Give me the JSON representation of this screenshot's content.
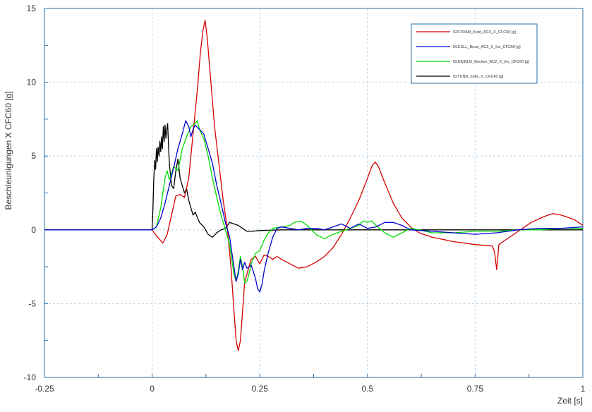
{
  "chart_data": {
    "type": "line",
    "xlabel": "Zeit [s]",
    "ylabel": "Beschleunigungen X CFC60 [g]",
    "xlim": [
      -0.25,
      1.0
    ],
    "ylim": [
      -10,
      15
    ],
    "x_ticks": [
      -0.25,
      0,
      0.25,
      0.5,
      0.75,
      1
    ],
    "x_tick_labels": [
      "-0.25",
      "0",
      "0.25",
      "0.5",
      "0.75",
      "1"
    ],
    "y_ticks": [
      -10,
      -5,
      0,
      5,
      10,
      15
    ],
    "y_tick_labels": [
      "-10",
      "-5",
      "0",
      "5",
      "10",
      "15"
    ],
    "grid": true,
    "legend_position": "top-right",
    "series": [
      {
        "name": "02STRAM_Kopf_ACX_X_CFC60 [g]",
        "color": "#d40000",
        "points": [
          [
            -0.25,
            0
          ],
          [
            -0.1,
            0
          ],
          [
            0.0,
            0
          ],
          [
            0.01,
            -0.4
          ],
          [
            0.025,
            -0.9
          ],
          [
            0.035,
            -0.3
          ],
          [
            0.045,
            1.0
          ],
          [
            0.055,
            2.3
          ],
          [
            0.065,
            2.4
          ],
          [
            0.075,
            2.2
          ],
          [
            0.085,
            3.5
          ],
          [
            0.095,
            6.5
          ],
          [
            0.105,
            9.5
          ],
          [
            0.112,
            12.0
          ],
          [
            0.118,
            13.5
          ],
          [
            0.123,
            14.2
          ],
          [
            0.128,
            13.0
          ],
          [
            0.135,
            10.5
          ],
          [
            0.145,
            7.0
          ],
          [
            0.155,
            4.5
          ],
          [
            0.165,
            2.0
          ],
          [
            0.175,
            0.0
          ],
          [
            0.183,
            -2.5
          ],
          [
            0.19,
            -5.5
          ],
          [
            0.195,
            -7.5
          ],
          [
            0.2,
            -8.2
          ],
          [
            0.205,
            -7.5
          ],
          [
            0.21,
            -5.5
          ],
          [
            0.215,
            -3.5
          ],
          [
            0.22,
            -3.0
          ],
          [
            0.225,
            -2.5
          ],
          [
            0.23,
            -2.0
          ],
          [
            0.24,
            -1.8
          ],
          [
            0.25,
            -2.3
          ],
          [
            0.26,
            -1.7
          ],
          [
            0.27,
            -1.8
          ],
          [
            0.28,
            -2.0
          ],
          [
            0.29,
            -1.8
          ],
          [
            0.3,
            -2.0
          ],
          [
            0.32,
            -2.3
          ],
          [
            0.34,
            -2.6
          ],
          [
            0.36,
            -2.5
          ],
          [
            0.38,
            -2.2
          ],
          [
            0.4,
            -1.8
          ],
          [
            0.42,
            -1.2
          ],
          [
            0.44,
            -0.3
          ],
          [
            0.46,
            0.8
          ],
          [
            0.48,
            2.0
          ],
          [
            0.5,
            3.5
          ],
          [
            0.51,
            4.3
          ],
          [
            0.518,
            4.6
          ],
          [
            0.525,
            4.3
          ],
          [
            0.54,
            3.2
          ],
          [
            0.56,
            1.8
          ],
          [
            0.58,
            0.8
          ],
          [
            0.6,
            0.2
          ],
          [
            0.62,
            -0.2
          ],
          [
            0.65,
            -0.5
          ],
          [
            0.7,
            -0.8
          ],
          [
            0.75,
            -1.0
          ],
          [
            0.79,
            -1.1
          ],
          [
            0.795,
            -1.5
          ],
          [
            0.8,
            -2.7
          ],
          [
            0.805,
            -1.0
          ],
          [
            0.82,
            -0.7
          ],
          [
            0.85,
            -0.1
          ],
          [
            0.88,
            0.5
          ],
          [
            0.91,
            0.9
          ],
          [
            0.93,
            1.1
          ],
          [
            0.95,
            1.0
          ],
          [
            0.98,
            0.7
          ],
          [
            1.0,
            0.3
          ]
        ]
      },
      {
        "name": "D1ESLL_Brust_ACZ_X_Inv_CFC60 [g]",
        "color": "#0000cc",
        "points": [
          [
            -0.25,
            0
          ],
          [
            -0.1,
            0
          ],
          [
            0.0,
            0
          ],
          [
            0.01,
            0.2
          ],
          [
            0.02,
            0.8
          ],
          [
            0.03,
            1.8
          ],
          [
            0.04,
            3.0
          ],
          [
            0.05,
            4.2
          ],
          [
            0.06,
            5.5
          ],
          [
            0.07,
            6.5
          ],
          [
            0.078,
            7.4
          ],
          [
            0.085,
            7.0
          ],
          [
            0.09,
            6.3
          ],
          [
            0.095,
            6.8
          ],
          [
            0.1,
            7.1
          ],
          [
            0.11,
            6.8
          ],
          [
            0.12,
            6.5
          ],
          [
            0.13,
            5.5
          ],
          [
            0.14,
            4.5
          ],
          [
            0.15,
            3.0
          ],
          [
            0.16,
            1.8
          ],
          [
            0.17,
            0.5
          ],
          [
            0.18,
            -0.5
          ],
          [
            0.185,
            -1.5
          ],
          [
            0.19,
            -2.5
          ],
          [
            0.195,
            -3.5
          ],
          [
            0.2,
            -3.0
          ],
          [
            0.205,
            -2.0
          ],
          [
            0.21,
            -2.7
          ],
          [
            0.215,
            -2.2
          ],
          [
            0.22,
            -2.6
          ],
          [
            0.23,
            -2.4
          ],
          [
            0.24,
            -3.3
          ],
          [
            0.245,
            -4.0
          ],
          [
            0.25,
            -4.2
          ],
          [
            0.255,
            -3.7
          ],
          [
            0.26,
            -2.8
          ],
          [
            0.27,
            -1.5
          ],
          [
            0.28,
            -0.5
          ],
          [
            0.29,
            0.1
          ],
          [
            0.3,
            0.2
          ],
          [
            0.32,
            0.1
          ],
          [
            0.34,
            0.0
          ],
          [
            0.36,
            0.1
          ],
          [
            0.38,
            0.1
          ],
          [
            0.4,
            0.0
          ],
          [
            0.42,
            0.2
          ],
          [
            0.44,
            0.4
          ],
          [
            0.46,
            0.1
          ],
          [
            0.48,
            0.4
          ],
          [
            0.5,
            0.1
          ],
          [
            0.52,
            0.2
          ],
          [
            0.54,
            0.5
          ],
          [
            0.56,
            0.5
          ],
          [
            0.58,
            0.3
          ],
          [
            0.6,
            0.0
          ],
          [
            0.65,
            -0.1
          ],
          [
            0.7,
            -0.2
          ],
          [
            0.75,
            -0.3
          ],
          [
            0.8,
            -0.2
          ],
          [
            0.85,
            0.0
          ],
          [
            0.9,
            0.1
          ],
          [
            0.95,
            0.1
          ],
          [
            1.0,
            0.2
          ]
        ]
      },
      {
        "name": "D1EKINLO_Becken_ACZ_X_Inv_CFC60 [g]",
        "color": "#00dd00",
        "points": [
          [
            -0.25,
            0
          ],
          [
            -0.1,
            0
          ],
          [
            0.0,
            0
          ],
          [
            0.01,
            0.2
          ],
          [
            0.02,
            1.5
          ],
          [
            0.03,
            3.5
          ],
          [
            0.035,
            4.0
          ],
          [
            0.04,
            3.4
          ],
          [
            0.045,
            3.8
          ],
          [
            0.05,
            4.3
          ],
          [
            0.06,
            4.0
          ],
          [
            0.07,
            5.5
          ],
          [
            0.08,
            6.3
          ],
          [
            0.09,
            7.0
          ],
          [
            0.1,
            7.2
          ],
          [
            0.105,
            7.4
          ],
          [
            0.11,
            6.8
          ],
          [
            0.12,
            6.2
          ],
          [
            0.13,
            5.0
          ],
          [
            0.14,
            3.5
          ],
          [
            0.15,
            2.2
          ],
          [
            0.16,
            1.0
          ],
          [
            0.17,
            0.0
          ],
          [
            0.18,
            -1.0
          ],
          [
            0.185,
            -2.0
          ],
          [
            0.19,
            -3.0
          ],
          [
            0.195,
            -3.5
          ],
          [
            0.2,
            -2.8
          ],
          [
            0.205,
            -1.8
          ],
          [
            0.21,
            -2.5
          ],
          [
            0.215,
            -3.6
          ],
          [
            0.22,
            -3.5
          ],
          [
            0.225,
            -3.0
          ],
          [
            0.23,
            -2.3
          ],
          [
            0.24,
            -1.6
          ],
          [
            0.25,
            -1.4
          ],
          [
            0.26,
            -0.7
          ],
          [
            0.27,
            -0.2
          ],
          [
            0.28,
            0.1
          ],
          [
            0.3,
            0.2
          ],
          [
            0.32,
            0.3
          ],
          [
            0.33,
            0.5
          ],
          [
            0.345,
            0.6
          ],
          [
            0.36,
            0.3
          ],
          [
            0.38,
            -0.3
          ],
          [
            0.4,
            -0.6
          ],
          [
            0.42,
            -0.3
          ],
          [
            0.44,
            -0.1
          ],
          [
            0.46,
            0.1
          ],
          [
            0.48,
            0.3
          ],
          [
            0.49,
            0.6
          ],
          [
            0.5,
            0.5
          ],
          [
            0.51,
            0.6
          ],
          [
            0.52,
            0.3
          ],
          [
            0.54,
            -0.2
          ],
          [
            0.56,
            -0.5
          ],
          [
            0.58,
            -0.2
          ],
          [
            0.6,
            0.1
          ],
          [
            0.62,
            0.0
          ],
          [
            0.65,
            -0.2
          ],
          [
            0.7,
            -0.2
          ],
          [
            0.75,
            -0.1
          ],
          [
            0.8,
            -0.1
          ],
          [
            0.85,
            0.0
          ],
          [
            0.9,
            0.0
          ],
          [
            0.95,
            0.1
          ],
          [
            1.0,
            0.1
          ]
        ]
      },
      {
        "name": "02TUNN_Zelle_X_CFC60 [g]",
        "color": "#000000",
        "points": [
          [
            -0.25,
            0
          ],
          [
            -0.1,
            0
          ],
          [
            0.0,
            0
          ],
          [
            0.002,
            1.5
          ],
          [
            0.004,
            3.5
          ],
          [
            0.006,
            4.7
          ],
          [
            0.008,
            4.1
          ],
          [
            0.01,
            5.5
          ],
          [
            0.012,
            4.6
          ],
          [
            0.014,
            5.6
          ],
          [
            0.016,
            5.0
          ],
          [
            0.018,
            6.0
          ],
          [
            0.02,
            5.3
          ],
          [
            0.022,
            6.3
          ],
          [
            0.024,
            5.5
          ],
          [
            0.026,
            7.0
          ],
          [
            0.028,
            6.0
          ],
          [
            0.03,
            7.1
          ],
          [
            0.032,
            6.2
          ],
          [
            0.034,
            6.8
          ],
          [
            0.036,
            7.2
          ],
          [
            0.038,
            5.8
          ],
          [
            0.04,
            4.5
          ],
          [
            0.045,
            3.0
          ],
          [
            0.05,
            2.8
          ],
          [
            0.055,
            4.0
          ],
          [
            0.06,
            4.8
          ],
          [
            0.065,
            3.5
          ],
          [
            0.07,
            3.0
          ],
          [
            0.075,
            2.5
          ],
          [
            0.08,
            2.8
          ],
          [
            0.085,
            2.0
          ],
          [
            0.09,
            1.5
          ],
          [
            0.095,
            1.0
          ],
          [
            0.1,
            1.2
          ],
          [
            0.11,
            0.5
          ],
          [
            0.12,
            0.2
          ],
          [
            0.13,
            -0.3
          ],
          [
            0.14,
            -0.5
          ],
          [
            0.15,
            -0.2
          ],
          [
            0.16,
            0.0
          ],
          [
            0.17,
            0.1
          ],
          [
            0.18,
            0.5
          ],
          [
            0.19,
            0.4
          ],
          [
            0.2,
            0.3
          ],
          [
            0.21,
            0.1
          ],
          [
            0.22,
            -0.1
          ],
          [
            0.23,
            -0.1
          ],
          [
            0.25,
            -0.05
          ],
          [
            0.3,
            0.0
          ],
          [
            0.35,
            0.0
          ],
          [
            0.4,
            0.0
          ],
          [
            0.45,
            0.0
          ],
          [
            0.5,
            0.0
          ],
          [
            0.55,
            0.0
          ],
          [
            0.6,
            0.0
          ],
          [
            0.7,
            0.0
          ],
          [
            0.8,
            0.0
          ],
          [
            0.9,
            0.0
          ],
          [
            1.0,
            0.0
          ]
        ]
      }
    ]
  }
}
